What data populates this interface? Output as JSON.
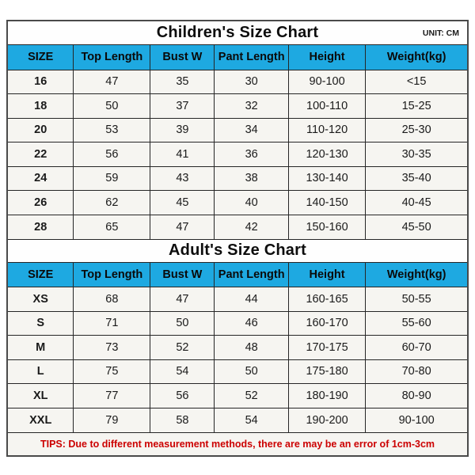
{
  "unit_label": "UNIT: CM",
  "colors": {
    "header_bg": "#1EA9E1",
    "row_bg": "#F6F5F1",
    "title_bg": "#FEFEFE",
    "outer_border": "#4A4A4A",
    "inner_border": "#262626",
    "tips_text": "#CC0000"
  },
  "chart_data": [
    {
      "type": "table",
      "title": "Children's Size Chart",
      "unit": "UNIT: CM",
      "columns": [
        "SIZE",
        "Top Length",
        "Bust W",
        "Pant Length",
        "Height",
        "Weight(kg)"
      ],
      "rows": [
        [
          "16",
          "47",
          "35",
          "30",
          "90-100",
          "<15"
        ],
        [
          "18",
          "50",
          "37",
          "32",
          "100-110",
          "15-25"
        ],
        [
          "20",
          "53",
          "39",
          "34",
          "110-120",
          "25-30"
        ],
        [
          "22",
          "56",
          "41",
          "36",
          "120-130",
          "30-35"
        ],
        [
          "24",
          "59",
          "43",
          "38",
          "130-140",
          "35-40"
        ],
        [
          "26",
          "62",
          "45",
          "40",
          "140-150",
          "40-45"
        ],
        [
          "28",
          "65",
          "47",
          "42",
          "150-160",
          "45-50"
        ]
      ]
    },
    {
      "type": "table",
      "title": "Adult's Size Chart",
      "columns": [
        "SIZE",
        "Top Length",
        "Bust W",
        "Pant Length",
        "Height",
        "Weight(kg)"
      ],
      "rows": [
        [
          "XS",
          "68",
          "47",
          "44",
          "160-165",
          "50-55"
        ],
        [
          "S",
          "71",
          "50",
          "46",
          "160-170",
          "55-60"
        ],
        [
          "M",
          "73",
          "52",
          "48",
          "170-175",
          "60-70"
        ],
        [
          "L",
          "75",
          "54",
          "50",
          "175-180",
          "70-80"
        ],
        [
          "XL",
          "77",
          "56",
          "52",
          "180-190",
          "80-90"
        ],
        [
          "XXL",
          "79",
          "58",
          "54",
          "190-200",
          "90-100"
        ]
      ]
    }
  ],
  "tips": "TIPS: Due to different measurement methods, there are may be an error of 1cm-3cm"
}
